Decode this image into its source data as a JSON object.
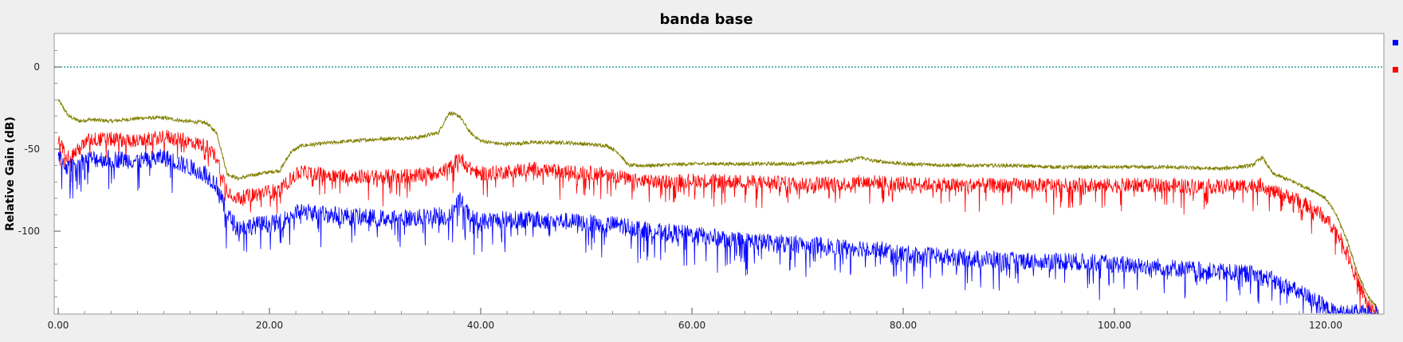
{
  "chart_data": {
    "type": "line",
    "title": "banda base",
    "ylabel": "Relative Gain (dB)",
    "xlim": [
      0,
      125
    ],
    "ylim": [
      -150,
      20
    ],
    "x_ticks": [
      0,
      20,
      40,
      60,
      80,
      100,
      120
    ],
    "x_tick_labels": [
      "0.00",
      "20.00",
      "40.00",
      "60.00",
      "80.00",
      "100.00",
      "120.00"
    ],
    "y_ticks": [
      0,
      -50,
      -100
    ],
    "y_tick_labels": [
      "0",
      "-50",
      "-100"
    ],
    "grid": false,
    "legend": "top-right",
    "reference_line": {
      "y": 0,
      "color": "#008b8b",
      "style": "dotted"
    },
    "series": [
      {
        "color": "#808000",
        "x": [
          0,
          1,
          2,
          3,
          5,
          8,
          10,
          12,
          14,
          15,
          16,
          17,
          19,
          21,
          22,
          23,
          26,
          30,
          34,
          36,
          37,
          38,
          39,
          40,
          42,
          45,
          48,
          52,
          53,
          54,
          56,
          60,
          65,
          70,
          75,
          76,
          77,
          80,
          85,
          90,
          95,
          100,
          105,
          110,
          113,
          114,
          115,
          117,
          119,
          120,
          121,
          122,
          123,
          124,
          125
        ],
        "y": [
          -20,
          -30,
          -33,
          -32,
          -33,
          -31,
          -31,
          -33,
          -34,
          -40,
          -65,
          -68,
          -65,
          -63,
          -52,
          -48,
          -46,
          -44,
          -43,
          -40,
          -28,
          -30,
          -40,
          -45,
          -47,
          -46,
          -46,
          -48,
          -52,
          -60,
          -60,
          -59,
          -59,
          -59,
          -57,
          -55,
          -57,
          -59,
          -60,
          -60,
          -61,
          -61,
          -61,
          -62,
          -60,
          -55,
          -65,
          -70,
          -76,
          -80,
          -90,
          -105,
          -125,
          -140,
          -148
        ]
      },
      {
        "color": "#ff0000",
        "x": [
          0,
          1,
          2,
          3,
          5,
          8,
          10,
          12,
          14,
          15,
          16,
          17,
          19,
          21,
          22,
          23,
          26,
          30,
          34,
          36,
          37,
          38,
          39,
          40,
          42,
          45,
          48,
          52,
          53,
          54,
          56,
          60,
          65,
          70,
          75,
          76,
          77,
          80,
          85,
          90,
          95,
          100,
          105,
          110,
          113,
          114,
          115,
          117,
          119,
          120,
          121,
          122,
          123,
          124,
          125
        ],
        "y": [
          -45,
          -55,
          -50,
          -44,
          -44,
          -45,
          -42,
          -45,
          -48,
          -55,
          -75,
          -80,
          -77,
          -75,
          -68,
          -64,
          -66,
          -67,
          -66,
          -64,
          -62,
          -55,
          -62,
          -65,
          -64,
          -62,
          -64,
          -65,
          -66,
          -69,
          -70,
          -69,
          -70,
          -71,
          -71,
          -70,
          -70,
          -71,
          -72,
          -72,
          -72,
          -72,
          -72,
          -73,
          -72,
          -72,
          -76,
          -80,
          -87,
          -92,
          -100,
          -112,
          -130,
          -145,
          -150
        ]
      },
      {
        "color": "#0000ff",
        "x": [
          0,
          1,
          2,
          3,
          5,
          8,
          10,
          12,
          14,
          15,
          16,
          17,
          19,
          21,
          22,
          23,
          26,
          30,
          34,
          36,
          37,
          38,
          39,
          40,
          42,
          45,
          48,
          52,
          53,
          54,
          56,
          60,
          65,
          70,
          75,
          76,
          77,
          80,
          85,
          90,
          95,
          100,
          105,
          110,
          113,
          114,
          115,
          117,
          119,
          120,
          121,
          122,
          123,
          124,
          125
        ],
        "y": [
          -55,
          -62,
          -58,
          -56,
          -56,
          -57,
          -55,
          -60,
          -65,
          -72,
          -90,
          -98,
          -96,
          -95,
          -90,
          -88,
          -90,
          -92,
          -92,
          -90,
          -92,
          -80,
          -92,
          -94,
          -93,
          -93,
          -94,
          -96,
          -96,
          -97,
          -100,
          -102,
          -106,
          -108,
          -110,
          -110,
          -110,
          -114,
          -116,
          -118,
          -118,
          -120,
          -122,
          -125,
          -126,
          -128,
          -130,
          -136,
          -142,
          -147,
          -150,
          -150,
          -150,
          -150,
          -150
        ]
      }
    ]
  }
}
